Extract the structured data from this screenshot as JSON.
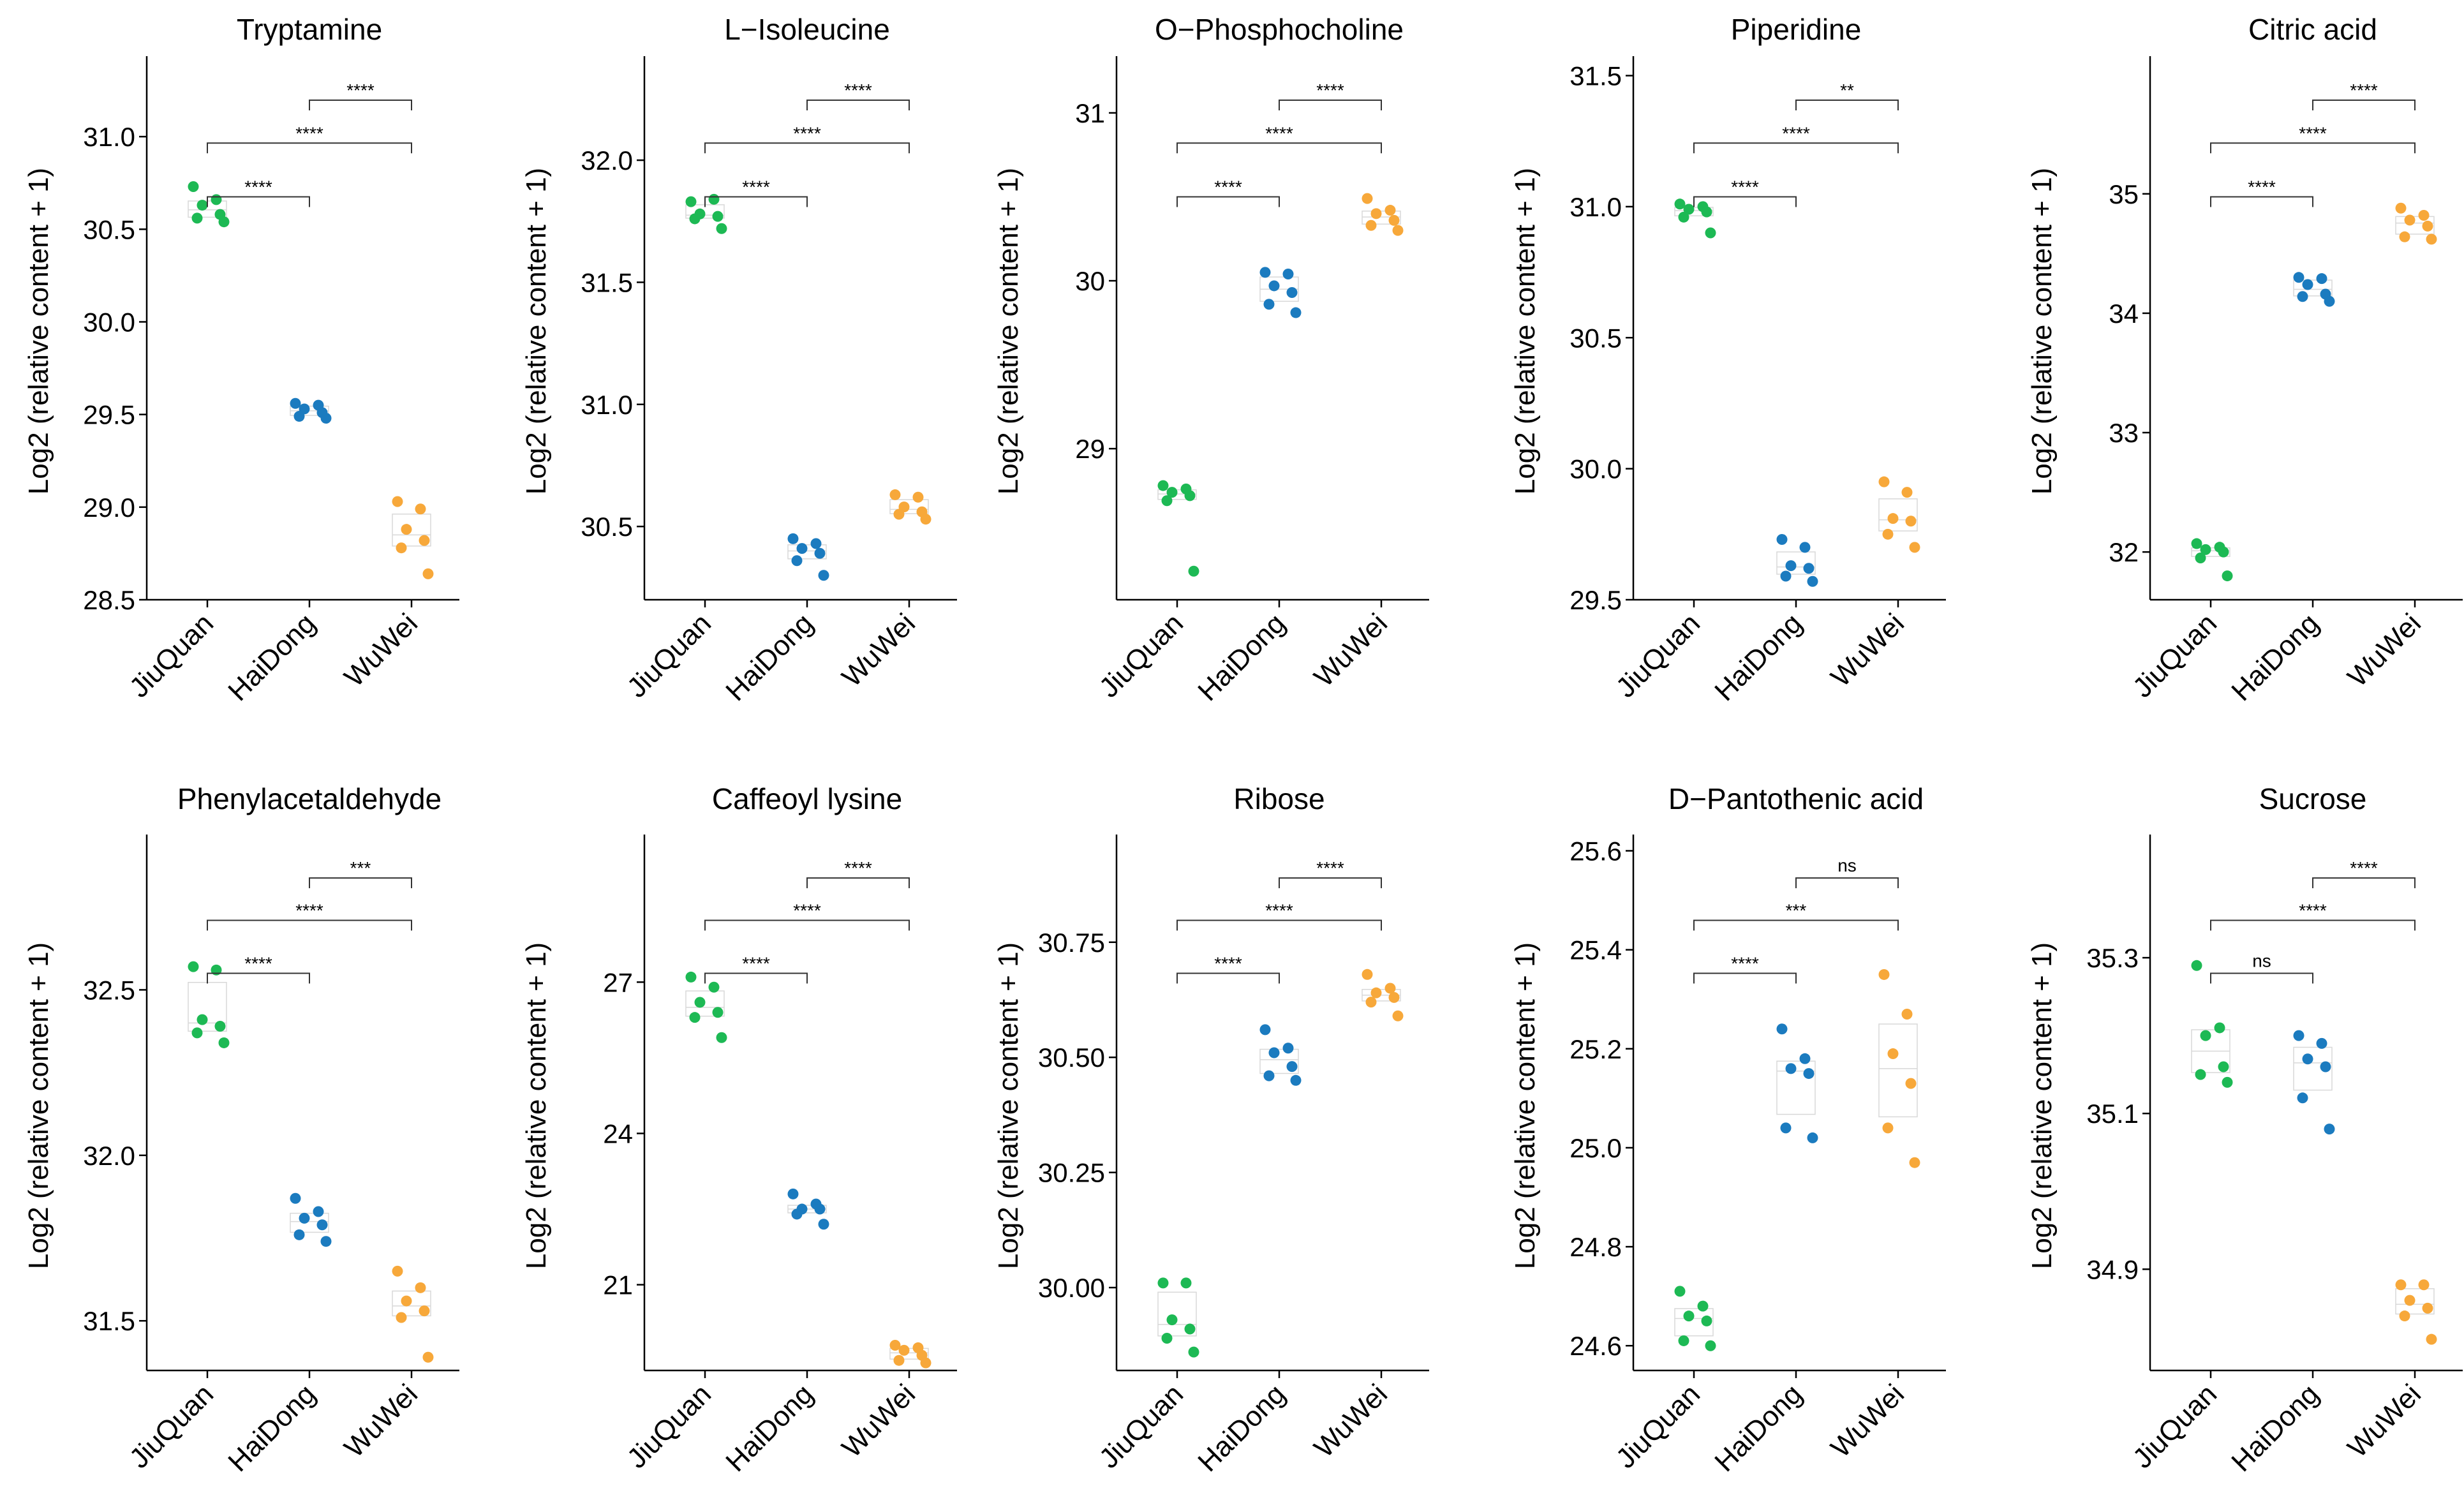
{
  "colors": {
    "JiuQuan": "#1db954",
    "HaiDong": "#1b7bbf",
    "WuWei": "#f7a83a"
  },
  "chart_data": [
    {
      "type": "scatter",
      "title": "Tryptamine",
      "xlabel": "",
      "ylabel": "Log2 (relative content + 1)",
      "categories": [
        "JiuQuan",
        "HaiDong",
        "WuWei"
      ],
      "ylim": [
        28.5,
        31.4
      ],
      "yticks": [
        28.5,
        29.0,
        29.5,
        30.0,
        30.5,
        31.0
      ],
      "ytick_labels": [
        "28.5",
        "29.0",
        "29.5",
        "30.0",
        "30.5",
        "31.0"
      ],
      "series": [
        {
          "name": "JiuQuan",
          "values": [
            30.73,
            30.66,
            30.63,
            30.58,
            30.56,
            30.54
          ]
        },
        {
          "name": "HaiDong",
          "values": [
            29.56,
            29.55,
            29.53,
            29.51,
            29.49,
            29.48
          ]
        },
        {
          "name": "WuWei",
          "values": [
            29.03,
            28.99,
            28.88,
            28.82,
            28.78,
            28.64
          ]
        }
      ],
      "comparisons": [
        {
          "from": "JiuQuan",
          "to": "HaiDong",
          "label": "****"
        },
        {
          "from": "JiuQuan",
          "to": "WuWei",
          "label": "****"
        },
        {
          "from": "HaiDong",
          "to": "WuWei",
          "label": "****"
        }
      ]
    },
    {
      "type": "scatter",
      "title": "L−Isoleucine",
      "xlabel": "",
      "ylabel": "Log2 (relative content + 1)",
      "categories": [
        "JiuQuan",
        "HaiDong",
        "WuWei"
      ],
      "ylim": [
        30.2,
        32.4
      ],
      "yticks": [
        30.5,
        31.0,
        31.5,
        32.0
      ],
      "ytick_labels": [
        "30.5",
        "31.0",
        "31.5",
        "32.0"
      ],
      "series": [
        {
          "name": "JiuQuan",
          "values": [
            31.83,
            31.84,
            31.78,
            31.77,
            31.76,
            31.72
          ]
        },
        {
          "name": "HaiDong",
          "values": [
            30.45,
            30.43,
            30.41,
            30.39,
            30.36,
            30.3
          ]
        },
        {
          "name": "WuWei",
          "values": [
            30.63,
            30.62,
            30.58,
            30.56,
            30.55,
            30.53
          ]
        }
      ],
      "comparisons": [
        {
          "from": "JiuQuan",
          "to": "HaiDong",
          "label": "****"
        },
        {
          "from": "JiuQuan",
          "to": "WuWei",
          "label": "****"
        },
        {
          "from": "HaiDong",
          "to": "WuWei",
          "label": "****"
        }
      ]
    },
    {
      "type": "scatter",
      "title": "O−Phosphocholine",
      "xlabel": "",
      "ylabel": "Log2 (relative content + 1)",
      "categories": [
        "JiuQuan",
        "HaiDong",
        "WuWei"
      ],
      "ylim": [
        28.1,
        31.3
      ],
      "yticks": [
        29,
        30,
        31
      ],
      "ytick_labels": [
        "29",
        "30",
        "31"
      ],
      "series": [
        {
          "name": "JiuQuan",
          "values": [
            28.78,
            28.76,
            28.74,
            28.72,
            28.69,
            28.27
          ]
        },
        {
          "name": "HaiDong",
          "values": [
            30.05,
            30.04,
            29.97,
            29.93,
            29.86,
            29.81
          ]
        },
        {
          "name": "WuWei",
          "values": [
            30.49,
            30.42,
            30.4,
            30.36,
            30.33,
            30.3
          ]
        }
      ],
      "comparisons": [
        {
          "from": "JiuQuan",
          "to": "HaiDong",
          "label": "****"
        },
        {
          "from": "JiuQuan",
          "to": "WuWei",
          "label": "****"
        },
        {
          "from": "HaiDong",
          "to": "WuWei",
          "label": "****"
        }
      ]
    },
    {
      "type": "scatter",
      "title": "Piperidine",
      "xlabel": "",
      "ylabel": "Log2 (relative content + 1)",
      "categories": [
        "JiuQuan",
        "HaiDong",
        "WuWei"
      ],
      "ylim": [
        29.5,
        31.55
      ],
      "yticks": [
        29.5,
        30.0,
        30.5,
        31.0,
        31.5
      ],
      "ytick_labels": [
        "29.5",
        "30.0",
        "30.5",
        "31.0",
        "31.5"
      ],
      "series": [
        {
          "name": "JiuQuan",
          "values": [
            31.01,
            31.0,
            30.99,
            30.98,
            30.96,
            30.9
          ]
        },
        {
          "name": "HaiDong",
          "values": [
            29.73,
            29.7,
            29.63,
            29.62,
            29.59,
            29.57
          ]
        },
        {
          "name": "WuWei",
          "values": [
            29.95,
            29.91,
            29.81,
            29.8,
            29.75,
            29.7
          ]
        }
      ],
      "comparisons": [
        {
          "from": "JiuQuan",
          "to": "HaiDong",
          "label": "****"
        },
        {
          "from": "JiuQuan",
          "to": "WuWei",
          "label": "****"
        },
        {
          "from": "HaiDong",
          "to": "WuWei",
          "label": "**"
        }
      ]
    },
    {
      "type": "scatter",
      "title": "Citric acid",
      "xlabel": "",
      "ylabel": "Log2 (relative content + 1)",
      "categories": [
        "JiuQuan",
        "HaiDong",
        "WuWei"
      ],
      "ylim": [
        31.6,
        36.1
      ],
      "yticks": [
        32,
        33,
        34,
        35
      ],
      "ytick_labels": [
        "32",
        "33",
        "34",
        "35"
      ],
      "series": [
        {
          "name": "JiuQuan",
          "values": [
            32.07,
            32.04,
            32.02,
            32.0,
            31.95,
            31.8
          ]
        },
        {
          "name": "HaiDong",
          "values": [
            34.3,
            34.29,
            34.24,
            34.16,
            34.14,
            34.1
          ]
        },
        {
          "name": "WuWei",
          "values": [
            34.88,
            34.82,
            34.78,
            34.73,
            34.64,
            34.62
          ]
        }
      ],
      "comparisons": [
        {
          "from": "JiuQuan",
          "to": "HaiDong",
          "label": "****"
        },
        {
          "from": "JiuQuan",
          "to": "WuWei",
          "label": "****"
        },
        {
          "from": "HaiDong",
          "to": "WuWei",
          "label": "****"
        }
      ]
    },
    {
      "type": "scatter",
      "title": "Phenylacetaldehyde",
      "xlabel": "",
      "ylabel": "Log2 (relative content + 1)",
      "categories": [
        "JiuQuan",
        "HaiDong",
        "WuWei"
      ],
      "ylim": [
        31.35,
        32.95
      ],
      "yticks": [
        31.5,
        32.0,
        32.5
      ],
      "ytick_labels": [
        "31.5",
        "32.0",
        "32.5"
      ],
      "series": [
        {
          "name": "JiuQuan",
          "values": [
            32.57,
            32.56,
            32.41,
            32.39,
            32.37,
            32.34
          ]
        },
        {
          "name": "HaiDong",
          "values": [
            31.87,
            31.83,
            31.81,
            31.79,
            31.76,
            31.74
          ]
        },
        {
          "name": "WuWei",
          "values": [
            31.65,
            31.6,
            31.56,
            31.53,
            31.51,
            31.39
          ]
        }
      ],
      "comparisons": [
        {
          "from": "JiuQuan",
          "to": "HaiDong",
          "label": "****"
        },
        {
          "from": "JiuQuan",
          "to": "WuWei",
          "label": "****"
        },
        {
          "from": "HaiDong",
          "to": "WuWei",
          "label": "***"
        }
      ]
    },
    {
      "type": "scatter",
      "title": "Caffeoyl lysine",
      "xlabel": "",
      "ylabel": "Log2 (relative content + 1)",
      "categories": [
        "JiuQuan",
        "HaiDong",
        "WuWei"
      ],
      "ylim": [
        19.3,
        29.8
      ],
      "yticks": [
        21,
        24,
        27
      ],
      "ytick_labels": [
        "21",
        "24",
        "27"
      ],
      "series": [
        {
          "name": "JiuQuan",
          "values": [
            27.1,
            26.9,
            26.6,
            26.4,
            26.3,
            25.9
          ]
        },
        {
          "name": "HaiDong",
          "values": [
            22.8,
            22.6,
            22.5,
            22.5,
            22.4,
            22.2
          ]
        },
        {
          "name": "WuWei",
          "values": [
            19.8,
            19.75,
            19.7,
            19.6,
            19.5,
            19.45
          ]
        }
      ],
      "comparisons": [
        {
          "from": "JiuQuan",
          "to": "HaiDong",
          "label": "****"
        },
        {
          "from": "JiuQuan",
          "to": "WuWei",
          "label": "****"
        },
        {
          "from": "HaiDong",
          "to": "WuWei",
          "label": "****"
        }
      ]
    },
    {
      "type": "scatter",
      "title": "Ribose",
      "xlabel": "",
      "ylabel": "Log2 (relative content + 1)",
      "categories": [
        "JiuQuan",
        "HaiDong",
        "WuWei"
      ],
      "ylim": [
        29.82,
        30.97
      ],
      "yticks": [
        30.0,
        30.25,
        30.5,
        30.75
      ],
      "ytick_labels": [
        "30.00",
        "30.25",
        "30.50",
        "30.75"
      ],
      "series": [
        {
          "name": "JiuQuan",
          "values": [
            30.01,
            30.01,
            29.93,
            29.91,
            29.89,
            29.86
          ]
        },
        {
          "name": "HaiDong",
          "values": [
            30.56,
            30.52,
            30.51,
            30.48,
            30.46,
            30.45
          ]
        },
        {
          "name": "WuWei",
          "values": [
            30.68,
            30.65,
            30.64,
            30.63,
            30.62,
            30.59
          ]
        }
      ],
      "comparisons": [
        {
          "from": "JiuQuan",
          "to": "HaiDong",
          "label": "****"
        },
        {
          "from": "JiuQuan",
          "to": "WuWei",
          "label": "****"
        },
        {
          "from": "HaiDong",
          "to": "WuWei",
          "label": "****"
        }
      ]
    },
    {
      "type": "scatter",
      "title": "D−Pantothenic acid",
      "xlabel": "",
      "ylabel": "Log2 (relative content + 1)",
      "categories": [
        "JiuQuan",
        "HaiDong",
        "WuWei"
      ],
      "ylim": [
        24.55,
        25.62
      ],
      "yticks": [
        24.6,
        24.8,
        25.0,
        25.2,
        25.4,
        25.6
      ],
      "ytick_labels": [
        "24.6",
        "24.8",
        "25.0",
        "25.2",
        "25.4",
        "25.6"
      ],
      "series": [
        {
          "name": "JiuQuan",
          "values": [
            24.71,
            24.68,
            24.66,
            24.65,
            24.61,
            24.6
          ]
        },
        {
          "name": "HaiDong",
          "values": [
            25.24,
            25.18,
            25.16,
            25.15,
            25.04,
            25.02
          ]
        },
        {
          "name": "WuWei",
          "values": [
            25.35,
            25.27,
            25.19,
            25.13,
            25.04,
            24.97
          ]
        }
      ],
      "comparisons": [
        {
          "from": "JiuQuan",
          "to": "HaiDong",
          "label": "****"
        },
        {
          "from": "JiuQuan",
          "to": "WuWei",
          "label": "***"
        },
        {
          "from": "HaiDong",
          "to": "WuWei",
          "label": "ns"
        }
      ]
    },
    {
      "type": "scatter",
      "title": "Sucrose",
      "xlabel": "",
      "ylabel": "Log2 (relative content + 1)",
      "categories": [
        "JiuQuan",
        "HaiDong",
        "WuWei"
      ],
      "ylim": [
        34.77,
        35.45
      ],
      "yticks": [
        34.9,
        35.1,
        35.3
      ],
      "ytick_labels": [
        "34.9",
        "35.1",
        "35.3"
      ],
      "series": [
        {
          "name": "JiuQuan",
          "values": [
            35.29,
            35.21,
            35.2,
            35.16,
            35.15,
            35.14
          ]
        },
        {
          "name": "HaiDong",
          "values": [
            35.2,
            35.19,
            35.17,
            35.16,
            35.12,
            35.08
          ]
        },
        {
          "name": "WuWei",
          "values": [
            34.88,
            34.88,
            34.86,
            34.85,
            34.84,
            34.81
          ]
        }
      ],
      "comparisons": [
        {
          "from": "JiuQuan",
          "to": "HaiDong",
          "label": "ns"
        },
        {
          "from": "JiuQuan",
          "to": "WuWei",
          "label": "****"
        },
        {
          "from": "HaiDong",
          "to": "WuWei",
          "label": "****"
        }
      ]
    }
  ]
}
